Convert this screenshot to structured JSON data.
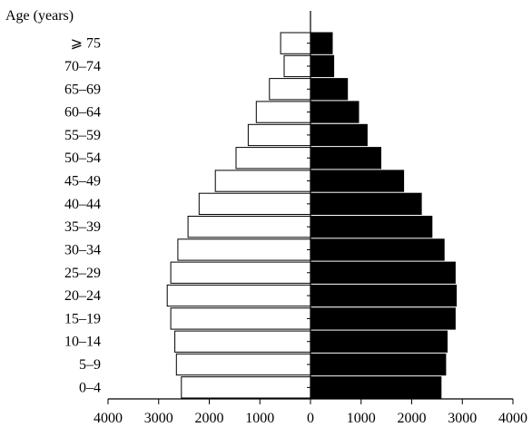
{
  "chart_data": {
    "type": "bar",
    "orientation": "horizontal",
    "layout": "population-pyramid",
    "ylabel": "Age (years)",
    "xlabel": "",
    "categories": [
      "0–4",
      "5–9",
      "10–14",
      "15–19",
      "20–24",
      "25–29",
      "30–34",
      "35–39",
      "40–44",
      "45–49",
      "50–54",
      "55–59",
      "60–64",
      "65–69",
      "70–74",
      "⩾ 75"
    ],
    "xlim": [
      -4000,
      4000
    ],
    "x_tick_values": [
      -4000,
      -3000,
      -2000,
      -1000,
      0,
      1000,
      2000,
      3000,
      4000
    ],
    "x_tick_labels": [
      "4000",
      "3000",
      "2000",
      "1000",
      "0",
      "1000",
      "2000",
      "3000",
      "4000"
    ],
    "series": [
      {
        "side": "left",
        "fill": "#ffffff",
        "stroke": "#000000",
        "values": [
          2550,
          2650,
          2680,
          2760,
          2830,
          2760,
          2620,
          2420,
          2200,
          1880,
          1470,
          1230,
          1070,
          810,
          520,
          590
        ]
      },
      {
        "side": "right",
        "fill": "#000000",
        "stroke": "#000000",
        "values": [
          2580,
          2670,
          2700,
          2860,
          2880,
          2860,
          2640,
          2400,
          2190,
          1840,
          1390,
          1120,
          950,
          730,
          460,
          430
        ]
      }
    ],
    "grid": false,
    "legend": "none"
  }
}
